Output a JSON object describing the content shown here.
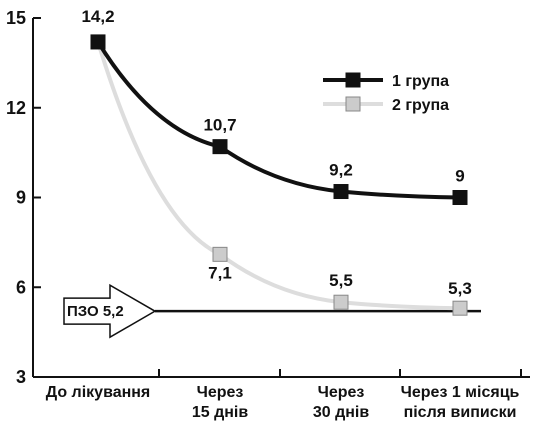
{
  "chart_data": {
    "type": "line",
    "title": "",
    "xlabel": "",
    "ylabel": "",
    "ylim": [
      3,
      15
    ],
    "yticks": [
      3,
      6,
      9,
      12,
      15
    ],
    "categories": [
      [
        "До лікування"
      ],
      [
        "Через",
        "15 днів"
      ],
      [
        "Через",
        "30 днів"
      ],
      [
        "Через 1 місяць",
        "після виписки"
      ]
    ],
    "series": [
      {
        "name": "1 група",
        "values": [
          14.2,
          10.7,
          9.2,
          9
        ],
        "labels": [
          "14,2",
          "10,7",
          "9,2",
          "9"
        ],
        "color": "#111111",
        "marker_fill": "#111111"
      },
      {
        "name": "2 група",
        "values": [
          14.2,
          7.1,
          5.5,
          5.3
        ],
        "labels": [
          "",
          "7,1",
          "5,5",
          "5,3"
        ],
        "color": "#dddddd",
        "marker_fill": "#cccccc"
      }
    ],
    "reference_line": {
      "value": 5.2,
      "label": "ПЗО 5,2"
    },
    "grid": false,
    "legend_position": "top-right"
  }
}
